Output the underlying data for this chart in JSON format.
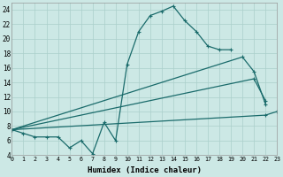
{
  "background_color": "#cce8e5",
  "grid_color": "#aacfcb",
  "line_color": "#1a6b6b",
  "xlabel": "Humidex (Indice chaleur)",
  "xlim": [
    0,
    23
  ],
  "ylim": [
    4,
    25
  ],
  "xticks": [
    0,
    1,
    2,
    3,
    4,
    5,
    6,
    7,
    8,
    9,
    10,
    11,
    12,
    13,
    14,
    15,
    16,
    17,
    18,
    19,
    20,
    21,
    22,
    23
  ],
  "yticks": [
    4,
    6,
    8,
    10,
    12,
    14,
    16,
    18,
    20,
    22,
    24
  ],
  "curve_main": {
    "x": [
      0,
      1,
      2,
      3,
      4,
      5,
      6,
      7,
      8,
      9,
      10,
      11,
      12,
      13,
      14,
      15,
      16,
      17,
      18,
      19
    ],
    "y": [
      7.5,
      7.0,
      6.5,
      6.5,
      6.5,
      5.0,
      6.0,
      4.2,
      8.5,
      6.0,
      16.5,
      21.0,
      23.2,
      23.8,
      24.5,
      22.5,
      21.0,
      19.0,
      18.5,
      18.5
    ]
  },
  "curve_upper": {
    "x": [
      0,
      20,
      21,
      22
    ],
    "y": [
      7.5,
      17.5,
      15.5,
      11.0
    ]
  },
  "curve_mid": {
    "x": [
      0,
      21,
      22
    ],
    "y": [
      7.5,
      14.5,
      11.5
    ]
  },
  "curve_lower": {
    "x": [
      0,
      22,
      23
    ],
    "y": [
      7.5,
      9.5,
      10.0
    ]
  }
}
